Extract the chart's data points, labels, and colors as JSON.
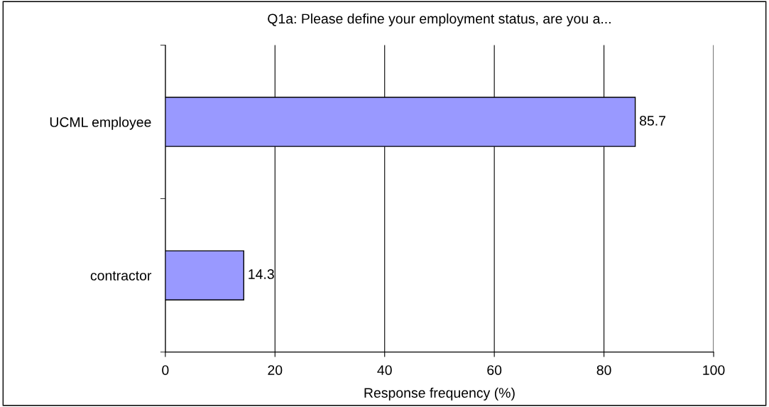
{
  "chart_data": {
    "type": "bar",
    "orientation": "horizontal",
    "title": "Q1a: Please define your employment status, are you a...",
    "xlabel": "Response frequency (%)",
    "categories": [
      "UCML employee",
      "contractor"
    ],
    "values": [
      85.7,
      14.3
    ],
    "color": "#9999ff",
    "xlim": [
      0,
      100
    ],
    "xticks": [
      0,
      20,
      40,
      60,
      80,
      100
    ],
    "grid": "x",
    "data_labels": true,
    "legend": false
  }
}
